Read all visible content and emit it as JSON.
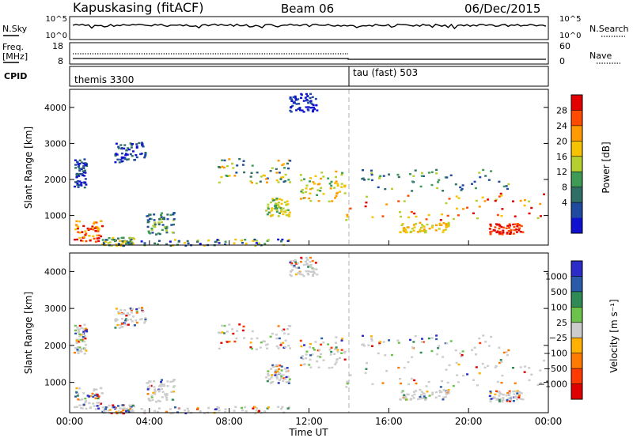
{
  "header": {
    "station": "Kapuskasing (fitACF)",
    "beam": "Beam 06",
    "date": "06/Dec/2015"
  },
  "labels": {
    "nsky": "N.Sky",
    "nsearch": "N.Search",
    "freq_top": "Freq.",
    "freq_unit": "[MHz]",
    "nave": "Nave",
    "cpid": "CPID",
    "xlabel": "Time UT"
  },
  "colors": {
    "line": "#000000",
    "divider": "#b0b0b0",
    "ground_scatter": "#bdbdbd"
  },
  "chart_data": [
    {
      "type": "line",
      "panel": "noise",
      "left_ticks": [
        "10^5",
        "10^0"
      ],
      "right_ticks": [
        "10^5",
        "10^0"
      ],
      "xlim": [
        0,
        24
      ]
    },
    {
      "type": "line",
      "panel": "frequency",
      "left_ticks": [
        "18",
        "8"
      ],
      "right_ticks": [
        "60",
        "0"
      ],
      "xlim": [
        0,
        24
      ]
    },
    {
      "type": "table",
      "panel": "cpid",
      "segments": [
        {
          "name": "themis 3300",
          "start": 0,
          "end": 14
        },
        {
          "name": "tau (fast) 503",
          "start": 14,
          "end": 24
        }
      ]
    },
    {
      "type": "heatmap",
      "panel": "power",
      "xlabel": "Time UT",
      "ylabel": "Slant Range [km]",
      "xlim": [
        0,
        24
      ],
      "ylim": [
        180,
        4500
      ],
      "xticks": [
        "00:00",
        "04:00",
        "08:00",
        "12:00",
        "16:00",
        "20:00",
        "00:00"
      ],
      "yticks": [
        1000,
        2000,
        3000,
        4000
      ],
      "colorbar": {
        "label": "Power [dB]",
        "ticks": [
          "28",
          "24",
          "20",
          "16",
          "12",
          "8",
          "4"
        ],
        "colors": [
          "#e30000",
          "#ff4a00",
          "#ff9a00",
          "#f7c300",
          "#b5cf2f",
          "#3e9a55",
          "#2f6f66",
          "#1f4aa0",
          "#1010d0"
        ]
      }
    },
    {
      "type": "heatmap",
      "panel": "velocity",
      "xlabel": "Time UT",
      "ylabel": "Slant Range [km]",
      "xlim": [
        0,
        24
      ],
      "ylim": [
        180,
        4500
      ],
      "xticks": [
        "00:00",
        "04:00",
        "08:00",
        "12:00",
        "16:00",
        "20:00",
        "00:00"
      ],
      "yticks": [
        1000,
        2000,
        3000,
        4000
      ],
      "colorbar": {
        "label": "Velocity [m s⁻¹]",
        "ticks": [
          "1000",
          "500",
          "100",
          "25",
          "−25",
          "−100",
          "−500",
          "−1000"
        ],
        "colors": [
          "#2c2cc8",
          "#2a5aa8",
          "#2f8a55",
          "#6cc24a",
          "#cccccc",
          "#ffb000",
          "#ff7a00",
          "#ff3a00",
          "#e00000"
        ]
      }
    }
  ]
}
